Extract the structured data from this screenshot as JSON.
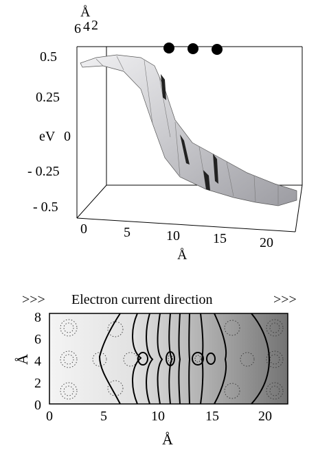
{
  "surface_plot": {
    "axis_unit_top": "Å",
    "depth_ticks": [
      "6",
      "4",
      "2"
    ],
    "z_axis_label": "eV",
    "z_ticks": [
      "0.5",
      "0.25",
      "0",
      "- 0.25",
      "- 0.5"
    ],
    "x_ticks": [
      "0",
      "5",
      "10",
      "15",
      "20"
    ],
    "x_axis_label": "Å",
    "surface_color": "#d9d9de",
    "atom_color": "#000000",
    "atom_count": 3
  },
  "contour_plot": {
    "direction_prefix": ">>>",
    "title": "Electron current direction",
    "direction_suffix": ">>>",
    "y_ticks": [
      "8",
      "6",
      "4",
      "2",
      "0"
    ],
    "y_axis_label": "Å",
    "x_ticks": [
      "0",
      "5",
      "10",
      "15",
      "20"
    ],
    "x_axis_label": "Å",
    "gradient_left": "#f2f2f2",
    "gradient_right": "#7a7a7a"
  }
}
